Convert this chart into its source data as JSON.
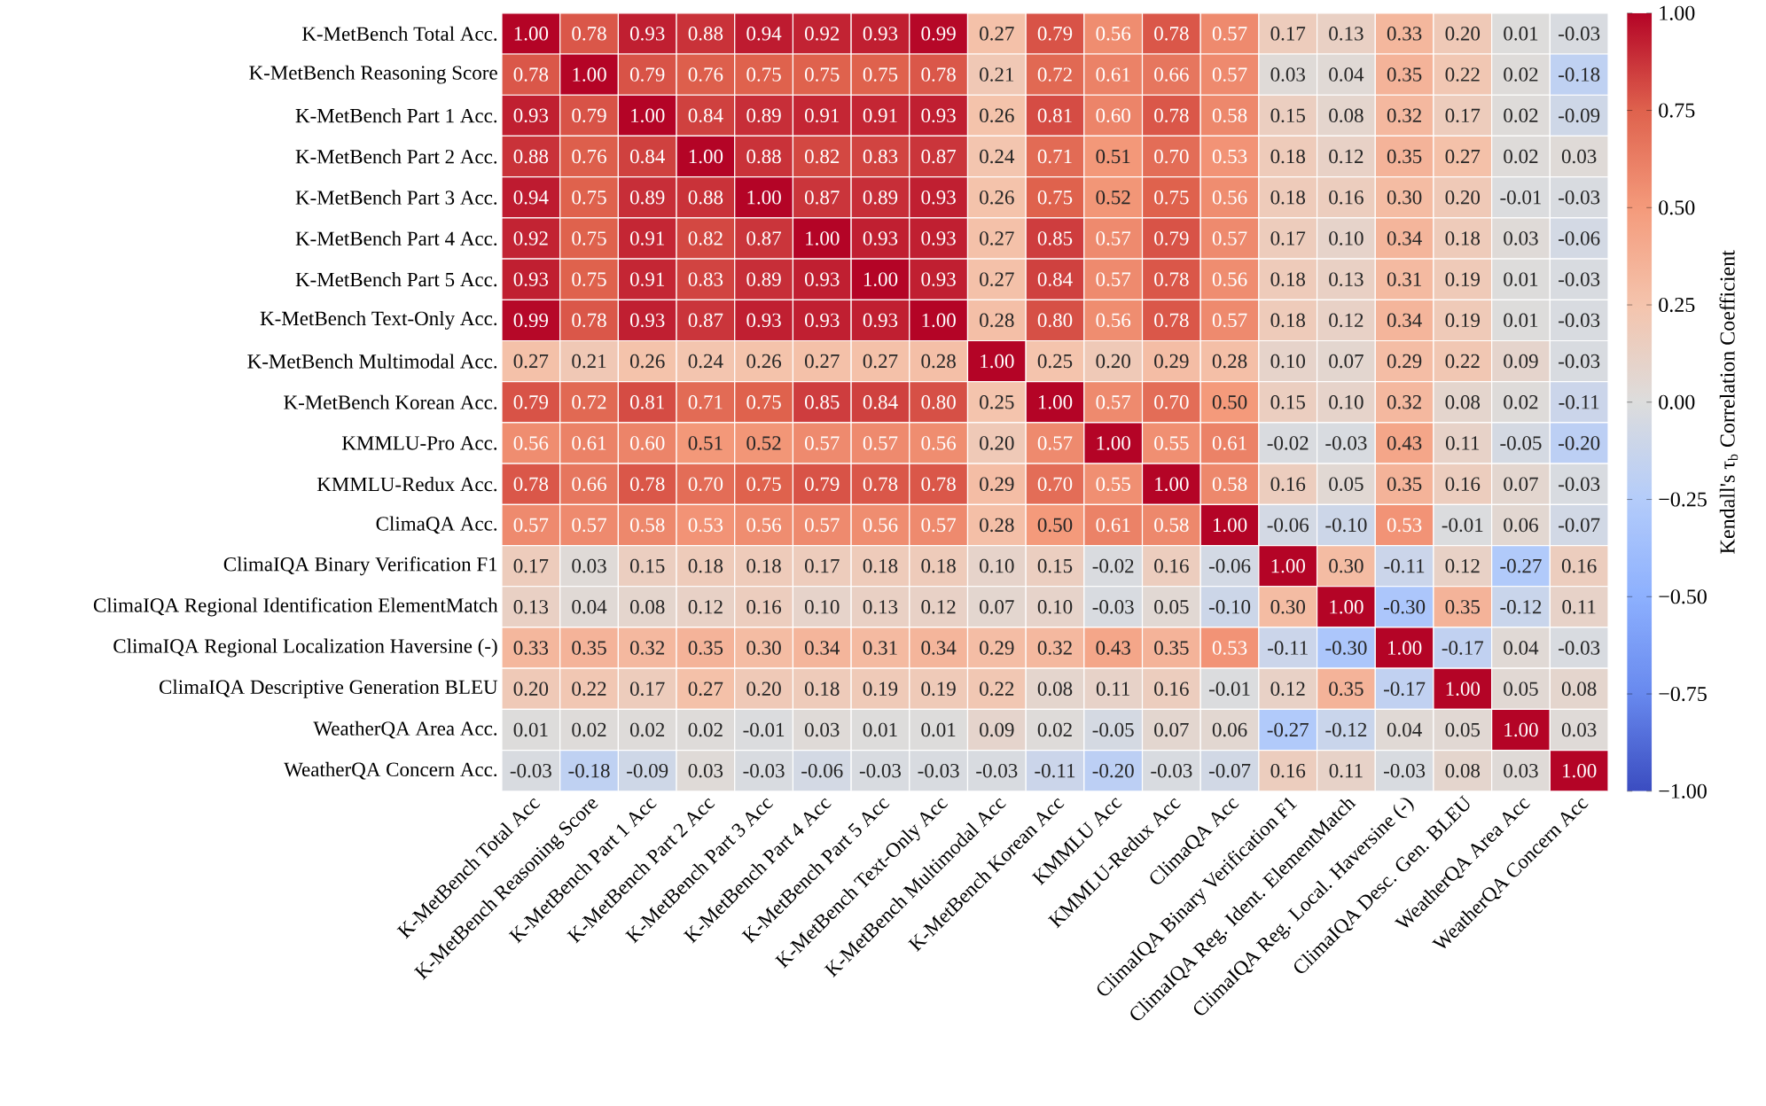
{
  "chart_data": {
    "type": "heatmap",
    "categories": [
      "K-MetBench Total Acc",
      "K-MetBench Reasoning Score",
      "K-MetBench Part 1 Acc",
      "K-MetBench Part 2 Acc",
      "K-MetBench Part 3 Acc",
      "K-MetBench Part 4 Acc",
      "K-MetBench Part 5 Acc",
      "K-MetBench Text-Only Acc",
      "K-MetBench Multimodal Acc",
      "K-MetBench Korean Acc",
      "KMMLU Acc",
      "KMMLU-Redux Acc",
      "ClimaQA Acc",
      "ClimaIQA Binary Verification F1",
      "ClimaIQA Reg. Ident. ElementMatch",
      "ClimaIQA Reg. Local. Haversine (-)",
      "ClimaIQA Desc. Gen. BLEU",
      "WeatherQA Area Acc",
      "WeatherQA Concern Acc"
    ],
    "y_categories": [
      "K-MetBench Total Acc.",
      "K-MetBench Reasoning Score",
      "K-MetBench Part 1 Acc.",
      "K-MetBench Part 2 Acc.",
      "K-MetBench Part 3 Acc.",
      "K-MetBench Part 4 Acc.",
      "K-MetBench Part 5 Acc.",
      "K-MetBench Text-Only Acc.",
      "K-MetBench Multimodal Acc.",
      "K-MetBench Korean Acc.",
      "KMMLU-Pro Acc.",
      "KMMLU-Redux Acc.",
      "ClimaQA Acc.",
      "ClimaIQA Binary Verification F1",
      "ClimaIQA Regional Identification ElementMatch",
      "ClimaIQA Regional Localization Haversine (-)",
      "ClimaIQA Descriptive Generation BLEU",
      "WeatherQA Area Acc.",
      "WeatherQA Concern Acc."
    ],
    "cells": [
      [
        1.0,
        0.78,
        0.93,
        0.88,
        0.94,
        0.92,
        0.93,
        0.99,
        0.27,
        0.79,
        0.56,
        0.78,
        0.57,
        0.17,
        0.13,
        0.33,
        0.2,
        0.01,
        -0.03
      ],
      [
        0.78,
        1.0,
        0.79,
        0.76,
        0.75,
        0.75,
        0.75,
        0.78,
        0.21,
        0.72,
        0.61,
        0.66,
        0.57,
        0.03,
        0.04,
        0.35,
        0.22,
        0.02,
        -0.18
      ],
      [
        0.93,
        0.79,
        1.0,
        0.84,
        0.89,
        0.91,
        0.91,
        0.93,
        0.26,
        0.81,
        0.6,
        0.78,
        0.58,
        0.15,
        0.08,
        0.32,
        0.17,
        0.02,
        -0.09
      ],
      [
        0.88,
        0.76,
        0.84,
        1.0,
        0.88,
        0.82,
        0.83,
        0.87,
        0.24,
        0.71,
        0.51,
        0.7,
        0.53,
        0.18,
        0.12,
        0.35,
        0.27,
        0.02,
        0.03
      ],
      [
        0.94,
        0.75,
        0.89,
        0.88,
        1.0,
        0.87,
        0.89,
        0.93,
        0.26,
        0.75,
        0.52,
        0.75,
        0.56,
        0.18,
        0.16,
        0.3,
        0.2,
        -0.01,
        -0.03
      ],
      [
        0.92,
        0.75,
        0.91,
        0.82,
        0.87,
        1.0,
        0.93,
        0.93,
        0.27,
        0.85,
        0.57,
        0.79,
        0.57,
        0.17,
        0.1,
        0.34,
        0.18,
        0.03,
        -0.06
      ],
      [
        0.93,
        0.75,
        0.91,
        0.83,
        0.89,
        0.93,
        1.0,
        0.93,
        0.27,
        0.84,
        0.57,
        0.78,
        0.56,
        0.18,
        0.13,
        0.31,
        0.19,
        0.01,
        -0.03
      ],
      [
        0.99,
        0.78,
        0.93,
        0.87,
        0.93,
        0.93,
        0.93,
        1.0,
        0.28,
        0.8,
        0.56,
        0.78,
        0.57,
        0.18,
        0.12,
        0.34,
        0.19,
        0.01,
        -0.03
      ],
      [
        0.27,
        0.21,
        0.26,
        0.24,
        0.26,
        0.27,
        0.27,
        0.28,
        1.0,
        0.25,
        0.2,
        0.29,
        0.28,
        0.1,
        0.07,
        0.29,
        0.22,
        0.09,
        -0.03
      ],
      [
        0.79,
        0.72,
        0.81,
        0.71,
        0.75,
        0.85,
        0.84,
        0.8,
        0.25,
        1.0,
        0.57,
        0.7,
        0.5,
        0.15,
        0.1,
        0.32,
        0.08,
        0.02,
        -0.11
      ],
      [
        0.56,
        0.61,
        0.6,
        0.51,
        0.52,
        0.57,
        0.57,
        0.56,
        0.2,
        0.57,
        1.0,
        0.55,
        0.61,
        -0.02,
        -0.03,
        0.43,
        0.11,
        -0.05,
        -0.2
      ],
      [
        0.78,
        0.66,
        0.78,
        0.7,
        0.75,
        0.79,
        0.78,
        0.78,
        0.29,
        0.7,
        0.55,
        1.0,
        0.58,
        0.16,
        0.05,
        0.35,
        0.16,
        0.07,
        -0.03
      ],
      [
        0.57,
        0.57,
        0.58,
        0.53,
        0.56,
        0.57,
        0.56,
        0.57,
        0.28,
        0.5,
        0.61,
        0.58,
        1.0,
        -0.06,
        -0.1,
        0.53,
        -0.01,
        0.06,
        -0.07
      ],
      [
        0.17,
        0.03,
        0.15,
        0.18,
        0.18,
        0.17,
        0.18,
        0.18,
        0.1,
        0.15,
        -0.02,
        0.16,
        -0.06,
        1.0,
        0.3,
        -0.11,
        0.12,
        -0.27,
        0.16
      ],
      [
        0.13,
        0.04,
        0.08,
        0.12,
        0.16,
        0.1,
        0.13,
        0.12,
        0.07,
        0.1,
        -0.03,
        0.05,
        -0.1,
        0.3,
        1.0,
        -0.3,
        0.35,
        -0.12,
        0.11
      ],
      [
        0.33,
        0.35,
        0.32,
        0.35,
        0.3,
        0.34,
        0.31,
        0.34,
        0.29,
        0.32,
        0.43,
        0.35,
        0.53,
        -0.11,
        -0.3,
        1.0,
        -0.17,
        0.04,
        -0.03
      ],
      [
        0.2,
        0.22,
        0.17,
        0.27,
        0.2,
        0.18,
        0.19,
        0.19,
        0.22,
        0.08,
        0.11,
        0.16,
        -0.01,
        0.12,
        0.35,
        -0.17,
        1.0,
        0.05,
        0.08
      ],
      [
        0.01,
        0.02,
        0.02,
        0.02,
        -0.01,
        0.03,
        0.01,
        0.01,
        0.09,
        0.02,
        -0.05,
        0.07,
        0.06,
        -0.27,
        -0.12,
        0.04,
        0.05,
        1.0,
        0.03
      ],
      [
        -0.03,
        -0.18,
        -0.09,
        0.03,
        -0.03,
        -0.06,
        -0.03,
        -0.03,
        -0.03,
        -0.11,
        -0.2,
        -0.03,
        -0.07,
        0.16,
        0.11,
        -0.03,
        0.08,
        0.03,
        1.0
      ]
    ],
    "cell_labels": [
      [
        "1.00",
        "0.78",
        "0.93",
        "0.88",
        "0.94",
        "0.92",
        "0.93",
        "0.99",
        "0.27",
        "0.79",
        "0.56",
        "0.78",
        "0.57",
        "0.17",
        "0.13",
        "0.33",
        "0.20",
        "0.01",
        "-0.03"
      ],
      [
        "0.78",
        "1.00",
        "0.79",
        "0.76",
        "0.75",
        "0.75",
        "0.75",
        "0.78",
        "0.21",
        "0.72",
        "0.61",
        "0.66",
        "0.57",
        "0.03",
        "0.04",
        "0.35",
        "0.22",
        "0.02",
        "-0.18"
      ],
      [
        "0.93",
        "0.79",
        "1.00",
        "0.84",
        "0.89",
        "0.91",
        "0.91",
        "0.93",
        "0.26",
        "0.81",
        "0.60",
        "0.78",
        "0.58",
        "0.15",
        "0.08",
        "0.32",
        "0.17",
        "0.02",
        "-0.09"
      ],
      [
        "0.88",
        "0.76",
        "0.84",
        "1.00",
        "0.88",
        "0.82",
        "0.83",
        "0.87",
        "0.24",
        "0.71",
        "0.51",
        "0.70",
        "0.53",
        "0.18",
        "0.12",
        "0.35",
        "0.27",
        "0.02",
        "0.03"
      ],
      [
        "0.94",
        "0.75",
        "0.89",
        "0.88",
        "1.00",
        "0.87",
        "0.89",
        "0.93",
        "0.26",
        "0.75",
        "0.52",
        "0.75",
        "0.56",
        "0.18",
        "0.16",
        "0.30",
        "0.20",
        "-0.01",
        "-0.03"
      ],
      [
        "0.92",
        "0.75",
        "0.91",
        "0.82",
        "0.87",
        "1.00",
        "0.93",
        "0.93",
        "0.27",
        "0.85",
        "0.57",
        "0.79",
        "0.57",
        "0.17",
        "0.10",
        "0.34",
        "0.18",
        "0.03",
        "-0.06"
      ],
      [
        "0.93",
        "0.75",
        "0.91",
        "0.83",
        "0.89",
        "0.93",
        "1.00",
        "0.93",
        "0.27",
        "0.84",
        "0.57",
        "0.78",
        "0.56",
        "0.18",
        "0.13",
        "0.31",
        "0.19",
        "0.01",
        "-0.03"
      ],
      [
        "0.99",
        "0.78",
        "0.93",
        "0.87",
        "0.93",
        "0.93",
        "0.93",
        "1.00",
        "0.28",
        "0.80",
        "0.56",
        "0.78",
        "0.57",
        "0.18",
        "0.12",
        "0.34",
        "0.19",
        "0.01",
        "-0.03"
      ],
      [
        "0.27",
        "0.21",
        "0.26",
        "0.24",
        "0.26",
        "0.27",
        "0.27",
        "0.28",
        "1.00",
        "0.25",
        "0.20",
        "0.29",
        "0.28",
        "0.10",
        "0.07",
        "0.29",
        "0.22",
        "0.09",
        "-0.03"
      ],
      [
        "0.79",
        "0.72",
        "0.81",
        "0.71",
        "0.75",
        "0.85",
        "0.84",
        "0.80",
        "0.25",
        "1.00",
        "0.57",
        "0.70",
        "0.50",
        "0.15",
        "0.10",
        "0.32",
        "0.08",
        "0.02",
        "-0.11"
      ],
      [
        "0.56",
        "0.61",
        "0.60",
        "0.51",
        "0.52",
        "0.57",
        "0.57",
        "0.56",
        "0.20",
        "0.57",
        "1.00",
        "0.55",
        "0.61",
        "-0.02",
        "-0.03",
        "0.43",
        "0.11",
        "-0.05",
        "-0.20"
      ],
      [
        "0.78",
        "0.66",
        "0.78",
        "0.70",
        "0.75",
        "0.79",
        "0.78",
        "0.78",
        "0.29",
        "0.70",
        "0.55",
        "1.00",
        "0.58",
        "0.16",
        "0.05",
        "0.35",
        "0.16",
        "0.07",
        "-0.03"
      ],
      [
        "0.57",
        "0.57",
        "0.58",
        "0.53",
        "0.56",
        "0.57",
        "0.56",
        "0.57",
        "0.28",
        "0.50",
        "0.61",
        "0.58",
        "1.00",
        "-0.06",
        "-0.10",
        "0.53",
        "-0.01",
        "0.06",
        "-0.07"
      ],
      [
        "0.17",
        "0.03",
        "0.15",
        "0.18",
        "0.18",
        "0.17",
        "0.18",
        "0.18",
        "0.10",
        "0.15",
        "-0.02",
        "0.16",
        "-0.06",
        "1.00",
        "0.30",
        "-0.11",
        "0.12",
        "-0.27",
        "0.16"
      ],
      [
        "0.13",
        "0.04",
        "0.08",
        "0.12",
        "0.16",
        "0.10",
        "0.13",
        "0.12",
        "0.07",
        "0.10",
        "-0.03",
        "0.05",
        "-0.10",
        "0.30",
        "1.00",
        "-0.30",
        "0.35",
        "-0.12",
        "0.11"
      ],
      [
        "0.33",
        "0.35",
        "0.32",
        "0.35",
        "0.30",
        "0.34",
        "0.31",
        "0.34",
        "0.29",
        "0.32",
        "0.43",
        "0.35",
        "0.53",
        "-0.11",
        "-0.30",
        "1.00",
        "-0.17",
        "0.04",
        "-0.03"
      ],
      [
        "0.20",
        "0.22",
        "0.17",
        "0.27",
        "0.20",
        "0.18",
        "0.19",
        "0.19",
        "0.22",
        "0.08",
        "0.11",
        "0.16",
        "-0.01",
        "0.12",
        "0.35",
        "-0.17",
        "1.00",
        "0.05",
        "0.08"
      ],
      [
        "0.01",
        "0.02",
        "0.02",
        "0.02",
        "-0.01",
        "0.03",
        "0.01",
        "0.01",
        "0.09",
        "0.02",
        "-0.05",
        "0.07",
        "0.06",
        "-0.27",
        "-0.12",
        "0.04",
        "0.05",
        "1.00",
        "0.03"
      ],
      [
        "-0.03",
        "-0.18",
        "-0.09",
        "0.03",
        "-0.03",
        "-0.06",
        "-0.03",
        "-0.03",
        "-0.03",
        "-0.11",
        "-0.20",
        "-0.03",
        "-0.07",
        "0.16",
        "0.11",
        "-0.03",
        "0.08",
        "0.03",
        "1.00"
      ]
    ],
    "clim": [
      -1,
      1
    ],
    "cticks": [
      {
        "value": -1,
        "label": "−1.00"
      },
      {
        "value": -0.75,
        "label": "−0.75"
      },
      {
        "value": -0.5,
        "label": "−0.50"
      },
      {
        "value": -0.25,
        "label": "−0.25"
      },
      {
        "value": 0,
        "label": "0.00"
      },
      {
        "value": 0.25,
        "label": "0.25"
      },
      {
        "value": 0.5,
        "label": "0.50"
      },
      {
        "value": 0.75,
        "label": "0.75"
      },
      {
        "value": 1,
        "label": "1.00"
      }
    ],
    "clabel": "Kendall's τ$_{b}$ Correlation Coefficient"
  }
}
